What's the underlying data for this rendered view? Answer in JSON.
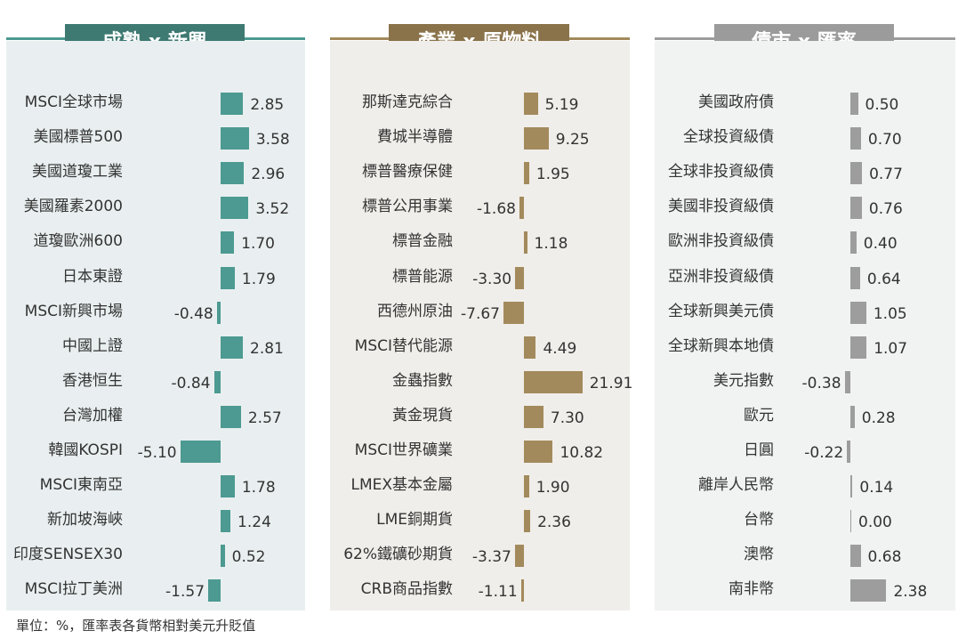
{
  "footnote": "單位：%，匯率表各貨幣相對美元升貶值",
  "colors": {
    "panel1_accent": "#4c9a91",
    "panel1_title": "#3e7a72",
    "panel1_bg": "#e9eff0",
    "panel2_accent": "#a38a5c",
    "panel2_title": "#8a734b",
    "panel2_bg": "#f0eeea",
    "panel3_accent": "#9d9d9d",
    "panel3_title": "#9b9b9b",
    "panel3_bg": "#f1f2f2"
  },
  "chart_data": [
    {
      "type": "bar",
      "title": "成熟 x 新興",
      "categories": [
        "MSCI全球市場",
        "美國標普500",
        "美國道瓊工業",
        "美國羅素2000",
        "道瓊歐洲600",
        "日本東證",
        "MSCI新興市場",
        "中國上證",
        "香港恒生",
        "台灣加權",
        "韓國KOSPI",
        "MSCI東南亞",
        "新加坡海峽",
        "印度SENSEX30",
        "MSCI拉丁美洲"
      ],
      "values": [
        2.85,
        3.58,
        2.96,
        3.52,
        1.7,
        1.79,
        -0.48,
        2.81,
        -0.84,
        2.57,
        -5.1,
        1.78,
        1.24,
        0.52,
        -1.57
      ],
      "value_labels": [
        "2.85",
        "3.58",
        "2.96",
        "3.52",
        "1.70",
        "1.79",
        "-0.48",
        "2.81",
        "-0.84",
        "2.57",
        "-5.10",
        "1.78",
        "1.24",
        "0.52",
        "-1.57"
      ],
      "orientation": "horizontal"
    },
    {
      "type": "bar",
      "title": "產業 x 原物料",
      "categories": [
        "那斯達克綜合",
        "費城半導體",
        "標普醫療保健",
        "標普公用事業",
        "標普金融",
        "標普能源",
        "西德州原油",
        "MSCI替代能源",
        "金蟲指數",
        "黃金現貨",
        "MSCI世界礦業",
        "LMEX基本金屬",
        "LME銅期貨",
        "62%鐵礦砂期貨",
        "CRB商品指數"
      ],
      "values": [
        5.19,
        9.25,
        1.95,
        -1.68,
        1.18,
        -3.3,
        -7.67,
        4.49,
        21.91,
        7.3,
        10.82,
        1.9,
        2.36,
        -3.37,
        -1.11
      ],
      "value_labels": [
        "5.19",
        "9.25",
        "1.95",
        "-1.68",
        "1.18",
        "-3.30",
        "-7.67",
        "4.49",
        "21.91",
        "7.30",
        "10.82",
        "1.90",
        "2.36",
        "-3.37",
        "-1.11"
      ],
      "orientation": "horizontal"
    },
    {
      "type": "bar",
      "title": "債市 x 匯率",
      "categories": [
        "美國政府債",
        "全球投資級債",
        "全球非投資級債",
        "美國非投資級債",
        "歐洲非投資級債",
        "亞洲非投資級債",
        "全球新興美元債",
        "全球新興本地債",
        "美元指數",
        "歐元",
        "日圓",
        "離岸人民幣",
        "台幣",
        "澳幣",
        "南非幣"
      ],
      "values": [
        0.5,
        0.7,
        0.77,
        0.76,
        0.4,
        0.64,
        1.05,
        1.07,
        -0.38,
        0.28,
        -0.22,
        0.14,
        0.0,
        0.68,
        2.38
      ],
      "value_labels": [
        "0.50",
        "0.70",
        "0.77",
        "0.76",
        "0.40",
        "0.64",
        "1.05",
        "1.07",
        "-0.38",
        "0.28",
        "-0.22",
        "0.14",
        "0.00",
        "0.68",
        "2.38"
      ],
      "orientation": "horizontal"
    }
  ]
}
